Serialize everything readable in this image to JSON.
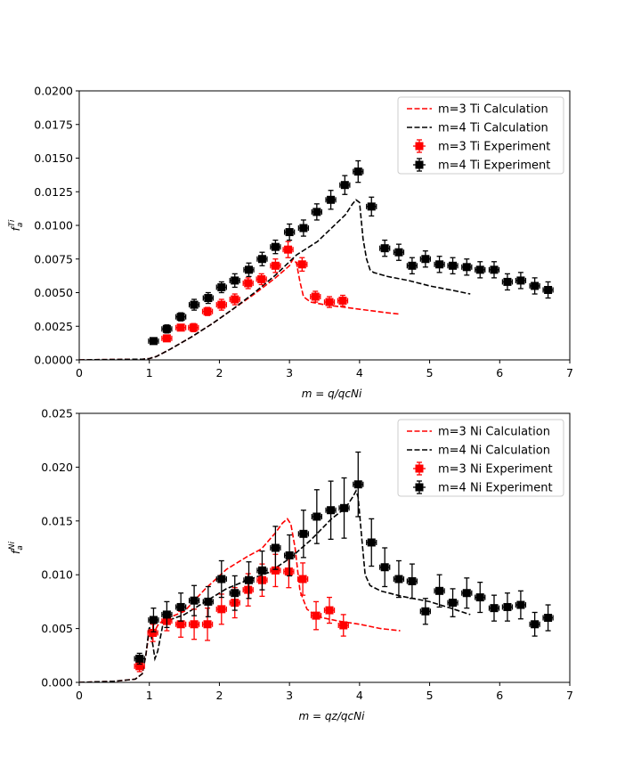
{
  "chart_data": [
    {
      "type": "line",
      "xlabel": "m = q/q_c^Ni",
      "ylabel": "f_a^Ti",
      "xlim": [
        0,
        7
      ],
      "ylim": [
        0,
        0.02
      ],
      "xticks": [
        0,
        1,
        2,
        3,
        4,
        5,
        6,
        7
      ],
      "yticks": [
        0.0,
        0.0025,
        0.005,
        0.0075,
        0.01,
        0.0125,
        0.015,
        0.0175,
        0.02
      ],
      "ytick_labels": [
        "0.0000",
        "0.0025",
        "0.0050",
        "0.0075",
        "0.0100",
        "0.0125",
        "0.0150",
        "0.0175",
        "0.0200"
      ],
      "legend_position": "top-right",
      "series": [
        {
          "name": "m=3 Ti Calculation",
          "kind": "line",
          "color": "#ff0000",
          "dashed": true,
          "x": [
            0,
            0.5,
            0.9,
            1.0,
            1.1,
            1.3,
            1.6,
            1.9,
            2.2,
            2.5,
            2.8,
            3.0,
            3.05,
            3.1,
            3.15,
            3.2,
            3.3,
            3.5,
            3.8,
            4.1,
            4.4,
            4.58
          ],
          "y": [
            0,
            3e-05,
            5e-05,
            0.0001,
            0.00025,
            0.0008,
            0.0017,
            0.0027,
            0.0038,
            0.0049,
            0.0061,
            0.007,
            0.0075,
            0.0072,
            0.0058,
            0.0047,
            0.0043,
            0.0041,
            0.0039,
            0.0037,
            0.0035,
            0.0034
          ]
        },
        {
          "name": "m=4 Ti Calculation",
          "kind": "line",
          "color": "#000000",
          "dashed": true,
          "x": [
            0,
            0.5,
            0.9,
            1.0,
            1.1,
            1.3,
            1.6,
            1.9,
            2.2,
            2.5,
            2.8,
            3.1,
            3.4,
            3.6,
            3.8,
            3.9,
            3.95,
            4.0,
            4.05,
            4.1,
            4.15,
            4.2,
            4.4,
            4.7,
            5.0,
            5.3,
            5.58
          ],
          "y": [
            0,
            3e-05,
            5e-05,
            0.0001,
            0.00025,
            0.0008,
            0.0017,
            0.0027,
            0.0038,
            0.005,
            0.0063,
            0.0078,
            0.0088,
            0.0098,
            0.0108,
            0.0116,
            0.0119,
            0.0117,
            0.009,
            0.0075,
            0.0067,
            0.0065,
            0.0062,
            0.0059,
            0.0055,
            0.0052,
            0.0049
          ]
        },
        {
          "name": "m=3 Ti Experiment",
          "kind": "errorbar",
          "color": "#ff0000",
          "x": [
            1.25,
            1.45,
            1.63,
            1.83,
            2.03,
            2.22,
            2.41,
            2.6,
            2.8,
            2.98,
            3.18,
            3.37,
            3.57,
            3.76
          ],
          "y": [
            0.0016,
            0.0024,
            0.0024,
            0.0036,
            0.0041,
            0.0045,
            0.0057,
            0.006,
            0.007,
            0.0082,
            0.0071,
            0.0047,
            0.0043,
            0.0044
          ],
          "yerr": [
            0.0002,
            0.0002,
            0.0003,
            0.0003,
            0.0004,
            0.0004,
            0.0004,
            0.0004,
            0.0005,
            0.0006,
            0.0005,
            0.0004,
            0.0004,
            0.0004
          ],
          "xerr": 0.07
        },
        {
          "name": "m=4 Ti Experiment",
          "kind": "errorbar",
          "color": "#000000",
          "x": [
            1.06,
            1.25,
            1.45,
            1.64,
            1.84,
            2.03,
            2.22,
            2.42,
            2.61,
            2.8,
            3.0,
            3.2,
            3.39,
            3.59,
            3.79,
            3.98,
            4.17,
            4.36,
            4.56,
            4.75,
            4.94,
            5.14,
            5.33,
            5.53,
            5.72,
            5.92,
            6.11,
            6.3,
            6.5,
            6.69
          ],
          "y": [
            0.0014,
            0.0023,
            0.0032,
            0.0041,
            0.0046,
            0.0054,
            0.0059,
            0.0067,
            0.0075,
            0.0084,
            0.0095,
            0.0098,
            0.011,
            0.0119,
            0.013,
            0.014,
            0.0114,
            0.0083,
            0.008,
            0.007,
            0.0075,
            0.0071,
            0.007,
            0.0069,
            0.0067,
            0.0067,
            0.0058,
            0.0059,
            0.0055,
            0.0052
          ],
          "yerr": [
            0.0002,
            0.0003,
            0.0003,
            0.0004,
            0.0004,
            0.0004,
            0.0005,
            0.0005,
            0.0005,
            0.0005,
            0.0006,
            0.0006,
            0.0006,
            0.0007,
            0.0007,
            0.0008,
            0.0007,
            0.0006,
            0.0006,
            0.0006,
            0.0006,
            0.0006,
            0.0006,
            0.0006,
            0.0006,
            0.0006,
            0.0006,
            0.0006,
            0.0006,
            0.0006
          ],
          "xerr": 0.07
        }
      ]
    },
    {
      "type": "line",
      "xlabel": "m = q_z/q_c^Ni",
      "ylabel": "f_a^Ni",
      "xlim": [
        0,
        7
      ],
      "ylim": [
        0,
        0.025
      ],
      "xticks": [
        0,
        1,
        2,
        3,
        4,
        5,
        6,
        7
      ],
      "yticks": [
        0.0,
        0.005,
        0.01,
        0.015,
        0.02,
        0.025
      ],
      "ytick_labels": [
        "0.000",
        "0.005",
        "0.010",
        "0.015",
        "0.020",
        "0.025"
      ],
      "legend_position": "top-right",
      "series": [
        {
          "name": "m=3 Ni Calculation",
          "kind": "line",
          "color": "#ff0000",
          "dashed": true,
          "x": [
            0,
            0.5,
            0.8,
            0.9,
            0.95,
            1.0,
            1.05,
            1.08,
            1.12,
            1.2,
            1.5,
            1.8,
            2.1,
            2.4,
            2.6,
            2.8,
            2.9,
            2.97,
            3.02,
            3.08,
            3.15,
            3.25,
            3.4,
            3.7,
            4.0,
            4.3,
            4.58
          ],
          "y": [
            0,
            0.0001,
            0.0003,
            0.0008,
            0.0025,
            0.0048,
            0.004,
            0.0048,
            0.0053,
            0.0058,
            0.0066,
            0.0087,
            0.0105,
            0.0117,
            0.0124,
            0.0139,
            0.0148,
            0.0152,
            0.0147,
            0.0125,
            0.0085,
            0.0068,
            0.0061,
            0.0057,
            0.0054,
            0.005,
            0.0048
          ]
        },
        {
          "name": "m=4 Ni Calculation",
          "kind": "line",
          "color": "#000000",
          "dashed": true,
          "x": [
            0,
            0.5,
            0.8,
            0.9,
            0.95,
            1.0,
            1.05,
            1.08,
            1.12,
            1.2,
            1.5,
            1.8,
            2.1,
            2.4,
            2.7,
            3.0,
            3.3,
            3.6,
            3.8,
            3.9,
            3.95,
            3.98,
            4.03,
            4.08,
            4.15,
            4.3,
            4.6,
            5.0,
            5.3,
            5.58
          ],
          "y": [
            0,
            0.0001,
            0.0003,
            0.0008,
            0.0025,
            0.0052,
            0.0035,
            0.0022,
            0.0029,
            0.0056,
            0.0063,
            0.0075,
            0.0087,
            0.0095,
            0.0102,
            0.0115,
            0.0132,
            0.0152,
            0.0162,
            0.0172,
            0.0178,
            0.0172,
            0.0135,
            0.01,
            0.009,
            0.0085,
            0.008,
            0.0075,
            0.0069,
            0.0063
          ]
        },
        {
          "name": "m=3 Ni Experiment",
          "kind": "errorbar",
          "color": "#ff0000",
          "x": [
            0.86,
            1.05,
            1.25,
            1.45,
            1.64,
            1.83,
            2.03,
            2.22,
            2.41,
            2.61,
            2.8,
            2.99,
            3.19,
            3.38,
            3.57,
            3.77
          ],
          "y": [
            0.0015,
            0.0046,
            0.0057,
            0.0054,
            0.0054,
            0.0054,
            0.0068,
            0.0074,
            0.0086,
            0.0095,
            0.0104,
            0.0103,
            0.0096,
            0.0062,
            0.0067,
            0.0053
          ],
          "yerr": [
            0.0005,
            0.0008,
            0.0009,
            0.0012,
            0.0014,
            0.0015,
            0.0014,
            0.0014,
            0.0015,
            0.0015,
            0.0015,
            0.0015,
            0.0015,
            0.0013,
            0.0012,
            0.001
          ],
          "xerr": 0.07
        },
        {
          "name": "m=4 Ni Experiment",
          "kind": "errorbar",
          "color": "#000000",
          "x": [
            0.86,
            1.06,
            1.25,
            1.45,
            1.64,
            1.84,
            2.03,
            2.22,
            2.42,
            2.61,
            2.8,
            3.0,
            3.2,
            3.39,
            3.59,
            3.78,
            3.98,
            4.17,
            4.36,
            4.56,
            4.75,
            4.94,
            5.14,
            5.33,
            5.53,
            5.72,
            5.92,
            6.11,
            6.3,
            6.5,
            6.69
          ],
          "y": [
            0.0022,
            0.0058,
            0.0063,
            0.007,
            0.0076,
            0.0075,
            0.0096,
            0.0083,
            0.0095,
            0.0104,
            0.0125,
            0.0118,
            0.0138,
            0.0154,
            0.016,
            0.0162,
            0.0184,
            0.013,
            0.0107,
            0.0096,
            0.0094,
            0.0066,
            0.0085,
            0.0074,
            0.0083,
            0.0079,
            0.0069,
            0.007,
            0.0072,
            0.0054,
            0.006
          ],
          "yerr": [
            0.0005,
            0.0011,
            0.0012,
            0.0013,
            0.0014,
            0.0014,
            0.0017,
            0.0016,
            0.0017,
            0.0018,
            0.002,
            0.0019,
            0.0022,
            0.0025,
            0.0027,
            0.0028,
            0.003,
            0.0022,
            0.0018,
            0.0017,
            0.0016,
            0.0012,
            0.0015,
            0.0013,
            0.0014,
            0.0014,
            0.0012,
            0.0013,
            0.0013,
            0.0011,
            0.0012
          ],
          "xerr": 0.07
        }
      ]
    }
  ]
}
